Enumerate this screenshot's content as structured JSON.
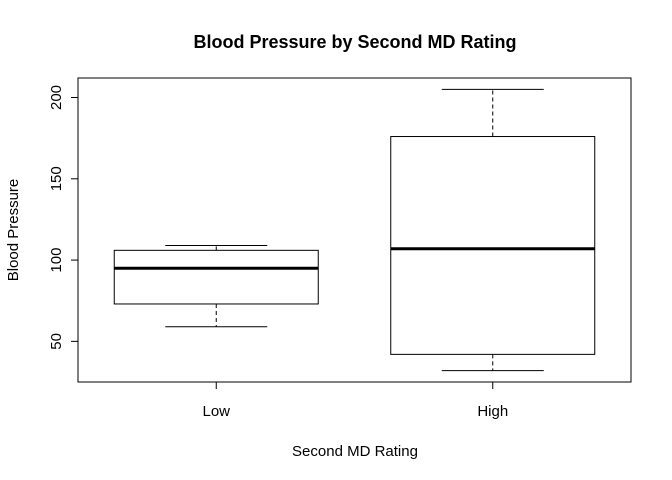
{
  "chart_data": {
    "type": "box",
    "title": "Blood Pressure by Second MD Rating",
    "xlabel": "Second MD Rating",
    "ylabel": "Blood Pressure",
    "ylim": [
      25,
      212
    ],
    "yticks": [
      "50",
      "100",
      "150",
      "200"
    ],
    "categories": [
      "Low",
      "High"
    ],
    "boxes": [
      {
        "category": "Low",
        "min": 59,
        "q1": 73,
        "median": 95,
        "q3": 106,
        "max": 109
      },
      {
        "category": "High",
        "min": 32,
        "q1": 42,
        "median": 107,
        "q3": 176,
        "max": 205
      }
    ],
    "grid": false,
    "colors": {
      "box_stroke": "#000000",
      "background": "#ffffff"
    }
  }
}
